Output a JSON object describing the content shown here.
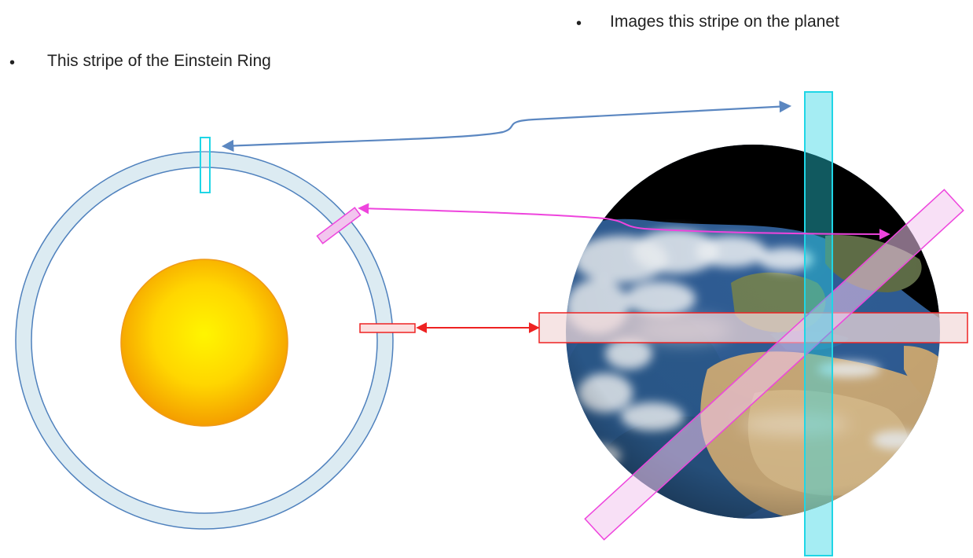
{
  "bullets": {
    "planet": {
      "marker": "•",
      "text": "Images this stripe on the planet"
    },
    "ring": {
      "marker": "•",
      "text": "This stripe of the Einstein Ring"
    }
  },
  "colors": {
    "ring_fill": "#dcebf2",
    "ring_stroke": "#4f81bd",
    "sun_center": "#fff200",
    "sun_edge": "#f7a400",
    "cyan": "#1fd6e6",
    "magenta": "#ee44dd",
    "red": "#ee2222",
    "blue_arrow": "#5b87c1"
  },
  "icons": {
    "sun": "sun-disc",
    "planet": "earth-globe"
  }
}
